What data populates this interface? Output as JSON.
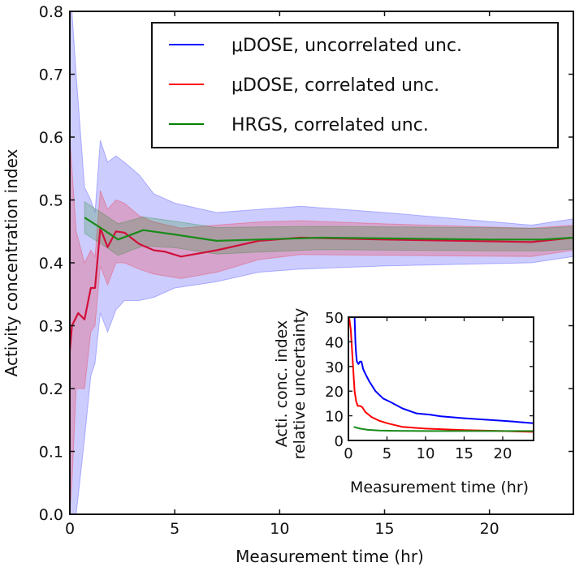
{
  "chart_data": [
    {
      "id": "main",
      "type": "line",
      "title": "",
      "xlabel": "Measurement time (hr)",
      "ylabel": "Activity concentration index",
      "xlim": [
        0,
        24
      ],
      "ylim": [
        0.0,
        0.8
      ],
      "xticks": [
        0,
        5,
        10,
        15,
        20
      ],
      "xtick_labels": [
        "0",
        "5",
        "10",
        "15",
        "20"
      ],
      "yticks": [
        0.0,
        0.1,
        0.2,
        0.3,
        0.4,
        0.5,
        0.6,
        0.7,
        0.8
      ],
      "ytick_labels": [
        "0.0",
        "0.1",
        "0.2",
        "0.3",
        "0.4",
        "0.5",
        "0.6",
        "0.7",
        "0.8"
      ],
      "grid": false,
      "legend": {
        "position": "top-right",
        "entries": [
          {
            "label": "μDOSE, uncorrelated unc.",
            "color": "#0000ff"
          },
          {
            "label": "μDOSE, correlated unc.",
            "color": "#ff0000"
          },
          {
            "label": "HRGS, correlated unc.",
            "color": "#008000"
          }
        ]
      },
      "series": [
        {
          "name": "μDOSE (central value)",
          "color": "#d0103a",
          "x": [
            0.0,
            0.1,
            0.4,
            0.7,
            1.0,
            1.2,
            1.45,
            1.8,
            2.2,
            2.6,
            3.3,
            4.0,
            4.5,
            5.3,
            7.0,
            9.0,
            11.0,
            15.0,
            22.0,
            24.0
          ],
          "y": [
            0.26,
            0.3,
            0.32,
            0.31,
            0.36,
            0.36,
            0.455,
            0.425,
            0.45,
            0.448,
            0.43,
            0.42,
            0.418,
            0.41,
            0.42,
            0.435,
            0.44,
            0.437,
            0.433,
            0.44
          ]
        },
        {
          "name": "HRGS, correlated unc.",
          "color": "#1a8a1a",
          "x": [
            0.7,
            1.5,
            2.3,
            3.5,
            5.0,
            7.0,
            9.0,
            12.0,
            20.0,
            22.5,
            24.0
          ],
          "y": [
            0.472,
            0.455,
            0.437,
            0.452,
            0.445,
            0.435,
            0.437,
            0.44,
            0.437,
            0.437,
            0.44
          ]
        }
      ],
      "bands": [
        {
          "name": "μDOSE, uncorrelated unc.",
          "color": "#0000ff",
          "opacity": 0.2,
          "x": [
            0.0,
            0.1,
            0.3,
            0.7,
            1.0,
            1.2,
            1.45,
            1.8,
            2.2,
            2.6,
            3.3,
            4.0,
            5.0,
            7.0,
            9.0,
            11.0,
            15.0,
            22.0,
            24.0
          ],
          "upper": [
            0.8,
            0.8,
            0.7,
            0.52,
            0.5,
            0.48,
            0.595,
            0.56,
            0.57,
            0.56,
            0.54,
            0.51,
            0.495,
            0.48,
            0.485,
            0.49,
            0.48,
            0.46,
            0.47
          ],
          "lower": [
            0.0,
            0.0,
            0.0,
            0.12,
            0.22,
            0.24,
            0.32,
            0.29,
            0.325,
            0.34,
            0.34,
            0.345,
            0.36,
            0.37,
            0.385,
            0.39,
            0.395,
            0.4,
            0.41
          ]
        },
        {
          "name": "μDOSE, correlated unc.",
          "color": "#ff0000",
          "opacity": 0.2,
          "x": [
            0.0,
            0.1,
            0.3,
            0.7,
            1.0,
            1.2,
            1.45,
            1.8,
            2.2,
            2.6,
            3.3,
            4.0,
            5.3,
            7.0,
            9.0,
            11.0,
            15.0,
            22.0,
            24.0
          ],
          "upper": [
            0.6,
            0.55,
            0.45,
            0.4,
            0.42,
            0.41,
            0.515,
            0.485,
            0.5,
            0.495,
            0.475,
            0.465,
            0.455,
            0.46,
            0.465,
            0.467,
            0.462,
            0.455,
            0.46
          ],
          "lower": [
            0.0,
            0.05,
            0.2,
            0.2,
            0.29,
            0.3,
            0.395,
            0.365,
            0.4,
            0.4,
            0.39,
            0.382,
            0.375,
            0.385,
            0.405,
            0.413,
            0.412,
            0.41,
            0.42
          ]
        },
        {
          "name": "HRGS, correlated unc.",
          "color": "#008000",
          "opacity": 0.2,
          "x": [
            0.7,
            1.5,
            2.3,
            3.5,
            5.0,
            7.0,
            9.0,
            12.0,
            20.0,
            22.5,
            24.0
          ],
          "upper": [
            0.497,
            0.48,
            0.462,
            0.473,
            0.466,
            0.456,
            0.457,
            0.458,
            0.456,
            0.455,
            0.458
          ],
          "lower": [
            0.447,
            0.43,
            0.412,
            0.427,
            0.424,
            0.414,
            0.417,
            0.421,
            0.419,
            0.419,
            0.422
          ]
        }
      ]
    },
    {
      "id": "inset",
      "type": "line",
      "title": "",
      "xlabel": "Measurement time (hr)",
      "ylabel_lines": [
        "Acti. conc. index",
        "relative uncertainty"
      ],
      "xlim": [
        0,
        24
      ],
      "ylim": [
        0,
        50
      ],
      "xticks": [
        0,
        5,
        10,
        15,
        20
      ],
      "xtick_labels": [
        "0",
        "5",
        "10",
        "15",
        "20"
      ],
      "yticks": [
        0,
        10,
        20,
        30,
        40,
        50
      ],
      "ytick_labels": [
        "0",
        "10",
        "20",
        "30",
        "40",
        "50"
      ],
      "grid": false,
      "series": [
        {
          "name": "μDOSE, uncorrelated unc.",
          "color": "#0000ff",
          "x": [
            0.8,
            0.9,
            1.0,
            1.1,
            1.3,
            1.5,
            1.7,
            1.9,
            2.2,
            2.7,
            3.5,
            4.5,
            5.5,
            7.0,
            8.8,
            10.5,
            12.0,
            15.0,
            20.0,
            24.0
          ],
          "y": [
            50,
            40,
            35,
            32,
            31,
            32,
            32,
            29,
            27,
            24,
            20,
            17,
            15.5,
            13,
            11,
            10.5,
            9.8,
            9,
            8,
            7
          ]
        },
        {
          "name": "μDOSE, correlated unc.",
          "color": "#ff0000",
          "x": [
            0.1,
            0.3,
            0.6,
            0.8,
            1.0,
            1.2,
            1.5,
            1.8,
            2.2,
            3.0,
            4.0,
            5.0,
            7.0,
            10.0,
            15.0,
            20.0,
            24.0
          ],
          "y": [
            50,
            45,
            30,
            20,
            16,
            14,
            14,
            13.5,
            11.5,
            9.5,
            8,
            7,
            5.5,
            4.8,
            4.2,
            3.8,
            3.5
          ]
        },
        {
          "name": "HRGS, correlated unc.",
          "color": "#1a8a1a",
          "x": [
            0.7,
            1.5,
            2.5,
            4.0,
            6.0,
            10.0,
            15.0,
            20.0,
            24.0
          ],
          "y": [
            5.5,
            4.8,
            4.3,
            4.0,
            3.9,
            3.8,
            3.8,
            3.8,
            3.8
          ]
        }
      ]
    }
  ]
}
